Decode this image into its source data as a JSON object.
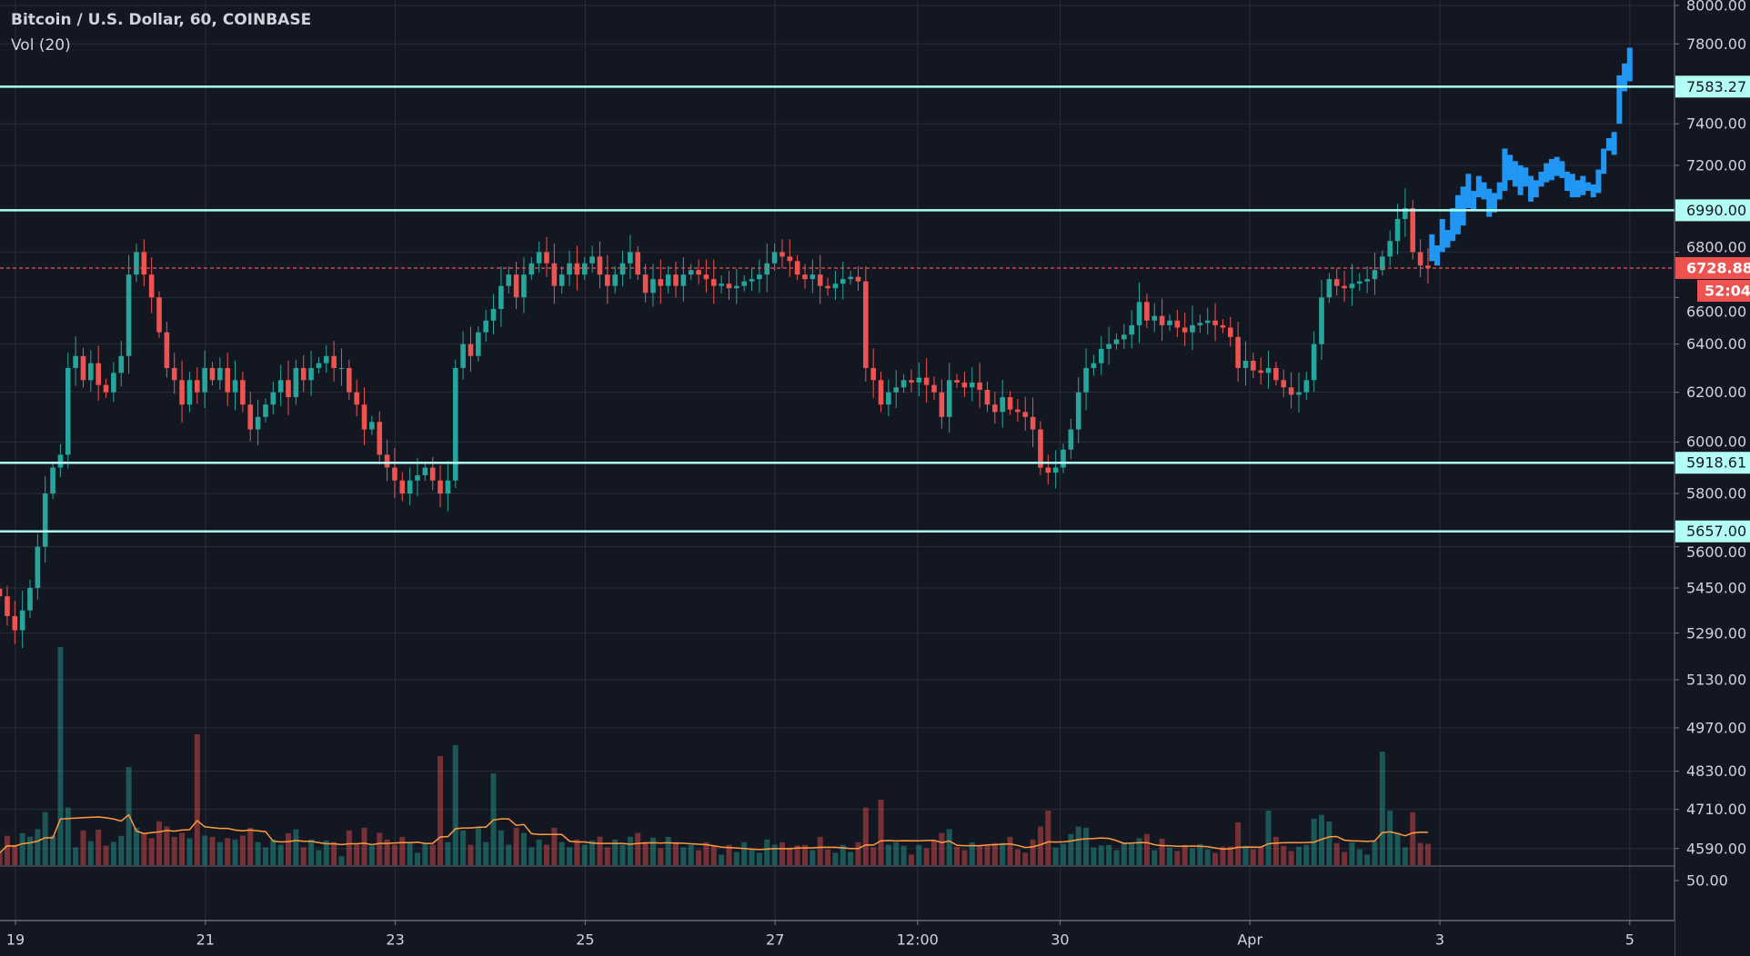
{
  "header": {
    "title": "Bitcoin / U.S. Dollar, 60, COINBASE",
    "volume_indicator": "Vol (20)"
  },
  "colors": {
    "background": "#131722",
    "grid": "#2a2e39",
    "up": "#26a69a",
    "down": "#ef5350",
    "level_line": "#b2fff5",
    "projection": "#2196f3",
    "volume_ma": "#ff9a3c",
    "axis_text": "#d1d4dc",
    "current_price": "#ef5350"
  },
  "chart_data": {
    "type": "candlestick",
    "title": "Bitcoin / U.S. Dollar, 60, COINBASE",
    "interval": "60",
    "y_scale": "log",
    "grid": true,
    "y_axis_labels": [
      "8000.00",
      "7800.00",
      "7400.00",
      "7200.00",
      "6800.00",
      "6600.00",
      "6400.00",
      "6200.00",
      "6000.00",
      "5800.00",
      "5600.00",
      "5450.00",
      "5290.00",
      "5130.00",
      "4970.00",
      "4830.00",
      "4710.00",
      "4590.00"
    ],
    "volume_axis_label": "50.00",
    "x_axis_labels": [
      {
        "label": "19",
        "at": "Mar 19 00:00"
      },
      {
        "label": "21",
        "at": "Mar 21 00:00"
      },
      {
        "label": "23",
        "at": "Mar 23 00:00"
      },
      {
        "label": "25",
        "at": "Mar 25 00:00"
      },
      {
        "label": "27",
        "at": "Mar 27 00:00"
      },
      {
        "label": "12:00",
        "at": "Mar 28 12:00"
      },
      {
        "label": "30",
        "at": "Mar 30 00:00"
      },
      {
        "label": "Apr",
        "at": "Apr 1 00:00"
      },
      {
        "label": "3",
        "at": "Apr 3 00:00"
      },
      {
        "label": "5",
        "at": "Apr 5 00:00"
      }
    ],
    "price_x_start": "Mar 18 20:00",
    "price_x_end": "Apr 2 21:00",
    "closes": [
      5420,
      5350,
      5300,
      5370,
      5450,
      5600,
      5800,
      5900,
      5950,
      6300,
      6350,
      6250,
      6320,
      6230,
      6200,
      6280,
      6350,
      6700,
      6800,
      6700,
      6600,
      6450,
      6300,
      6250,
      6150,
      6250,
      6200,
      6300,
      6250,
      6300,
      6200,
      6250,
      6150,
      6050,
      6100,
      6150,
      6200,
      6250,
      6180,
      6300,
      6250,
      6300,
      6320,
      6350,
      6300,
      6300,
      6200,
      6150,
      6050,
      6080,
      5950,
      5900,
      5850,
      5800,
      5850,
      5870,
      5900,
      5850,
      5800,
      5850,
      6300,
      6400,
      6350,
      6450,
      6500,
      6550,
      6650,
      6700,
      6600,
      6700,
      6750,
      6800,
      6750,
      6650,
      6700,
      6750,
      6700,
      6750,
      6780,
      6700,
      6650,
      6700,
      6750,
      6800,
      6700,
      6620,
      6680,
      6650,
      6700,
      6650,
      6700,
      6720,
      6700,
      6680,
      6650,
      6660,
      6640,
      6650,
      6670,
      6680,
      6700,
      6750,
      6800,
      6780,
      6760,
      6700,
      6680,
      6700,
      6650,
      6640,
      6660,
      6680,
      6690,
      6670,
      6300,
      6250,
      6150,
      6200,
      6220,
      6250,
      6240,
      6260,
      6230,
      6200,
      6100,
      6250,
      6240,
      6220,
      6240,
      6210,
      6150,
      6120,
      6180,
      6130,
      6120,
      6100,
      6050,
      5900,
      5880,
      5900,
      5970,
      6050,
      6200,
      6300,
      6320,
      6380,
      6400,
      6420,
      6440,
      6480,
      6580,
      6500,
      6520,
      6480,
      6500,
      6470,
      6450,
      6480,
      6490,
      6500,
      6480,
      6470,
      6430,
      6300,
      6330,
      6290,
      6280,
      6300,
      6250,
      6220,
      6190,
      6200,
      6250,
      6400,
      6600,
      6680,
      6650,
      6640,
      6660,
      6670,
      6680,
      6720,
      6780,
      6850,
      6950,
      7000,
      6800,
      6740,
      6729
    ],
    "volume_spikes": [
      {
        "index": 8,
        "relative": 1.0
      },
      {
        "index": 17,
        "relative": 0.45
      },
      {
        "index": 26,
        "relative": 0.6
      },
      {
        "index": 58,
        "relative": 0.5
      },
      {
        "index": 60,
        "relative": 0.55
      },
      {
        "index": 65,
        "relative": 0.42
      },
      {
        "index": 116,
        "relative": 0.3
      },
      {
        "index": 138,
        "relative": 0.25
      },
      {
        "index": 167,
        "relative": 0.25
      },
      {
        "index": 175,
        "relative": 0.2
      },
      {
        "index": 182,
        "relative": 0.52
      },
      {
        "index": 183,
        "relative": 0.25
      }
    ],
    "projection": {
      "x_start": "Apr 2 22:00",
      "x_end": "Apr 5 00:00",
      "bars_low_high": [
        [
          6760,
          6880
        ],
        [
          6740,
          6830
        ],
        [
          6800,
          6950
        ],
        [
          6820,
          6900
        ],
        [
          6850,
          7000
        ],
        [
          6880,
          7060
        ],
        [
          6920,
          7100
        ],
        [
          7000,
          7160
        ],
        [
          6990,
          7080
        ],
        [
          7050,
          7150
        ],
        [
          7040,
          7120
        ],
        [
          6960,
          7090
        ],
        [
          6980,
          7070
        ],
        [
          7040,
          7120
        ],
        [
          7080,
          7280
        ],
        [
          7130,
          7250
        ],
        [
          7100,
          7220
        ],
        [
          7060,
          7200
        ],
        [
          7100,
          7190
        ],
        [
          7030,
          7150
        ],
        [
          7050,
          7130
        ],
        [
          7100,
          7170
        ],
        [
          7120,
          7210
        ],
        [
          7130,
          7230
        ],
        [
          7150,
          7240
        ],
        [
          7140,
          7220
        ],
        [
          7080,
          7170
        ],
        [
          7050,
          7160
        ],
        [
          7050,
          7130
        ],
        [
          7060,
          7150
        ],
        [
          7080,
          7120
        ],
        [
          7050,
          7110
        ],
        [
          7070,
          7180
        ],
        [
          7160,
          7280
        ],
        [
          7270,
          7330
        ],
        [
          7250,
          7360
        ],
        [
          7400,
          7640
        ],
        [
          7560,
          7700
        ],
        [
          7610,
          7780
        ]
      ]
    },
    "horizontal_levels": [
      "7583.27",
      "6990.00",
      "5918.61",
      "5657.00"
    ],
    "current_price": "6728.88",
    "countdown": "52:04"
  }
}
